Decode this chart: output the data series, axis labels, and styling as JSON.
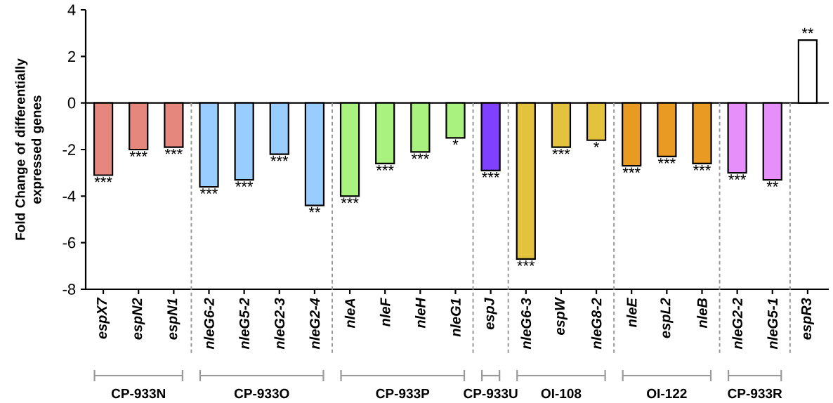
{
  "chart_data": {
    "type": "bar",
    "ylabel": "Fold Change of differentially expressed genes",
    "categories": [
      "espX7",
      "espN2",
      "espN1",
      "nleG6-2",
      "nleG5-2",
      "nleG2-3",
      "nleG2-4",
      "nleA",
      "nleF",
      "nleH",
      "nleG1",
      "espJ",
      "nleG6-3",
      "espW",
      "nleG8-2",
      "nleE",
      "espL2",
      "nleB",
      "nleG2-2",
      "nleG5-1",
      "espR3"
    ],
    "values": [
      -3.1,
      -2.0,
      -1.9,
      -3.6,
      -3.3,
      -2.2,
      -4.4,
      -4.0,
      -2.6,
      -2.1,
      -1.5,
      -2.9,
      -6.7,
      -1.9,
      -1.6,
      -2.7,
      -2.3,
      -2.6,
      -3.0,
      -3.3,
      2.7
    ],
    "colors": [
      "#e5877c",
      "#e5877c",
      "#e5877c",
      "#99ccff",
      "#99ccff",
      "#99ccff",
      "#99ccff",
      "#aaf27f",
      "#aaf27f",
      "#aaf27f",
      "#aaf27f",
      "#8040ff",
      "#e3c23e",
      "#e3c23e",
      "#e3c23e",
      "#e99a22",
      "#e99a22",
      "#e99a22",
      "#e68ef9",
      "#e68ef9",
      "#ffffff"
    ],
    "value_labels": [
      "***",
      "***",
      "***",
      "***",
      "***",
      "***",
      "**",
      "***",
      "***",
      "***",
      "*",
      "***",
      "***",
      "***",
      "*",
      "***",
      "***",
      "***",
      "***",
      "**",
      "**"
    ],
    "ylim": [
      -8,
      4
    ],
    "yticks": [
      -8,
      -6,
      -4,
      -2,
      0,
      2,
      4
    ],
    "annotations": [
      "CP-933N",
      "CP-933O",
      "CP-933P",
      "CP-933U",
      "OI-108",
      "OI-122",
      "CP-933R"
    ]
  }
}
